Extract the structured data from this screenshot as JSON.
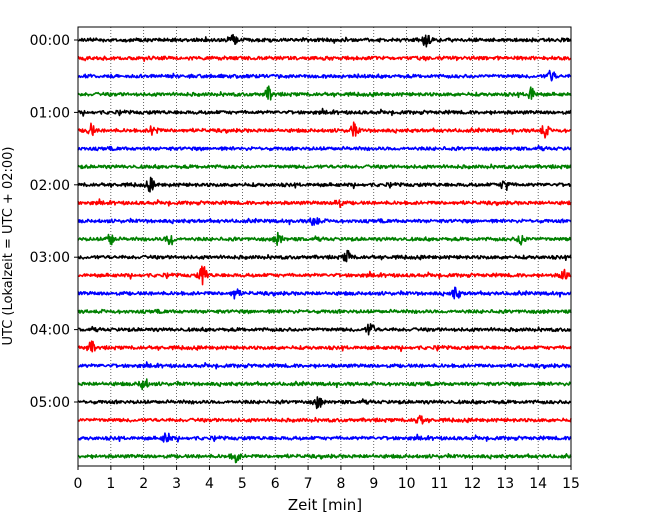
{
  "chart_data": {
    "type": "line",
    "title": "",
    "xlabel": "Zeit  [min]",
    "ylabel": "UTC (Lokalzeit = UTC + 02:00)",
    "xlim": [
      0,
      15
    ],
    "x_ticks": [
      "0",
      "1",
      "2",
      "3",
      "4",
      "5",
      "6",
      "7",
      "8",
      "9",
      "10",
      "11",
      "12",
      "13",
      "14",
      "15"
    ],
    "y_tick_labels": [
      "00:00",
      "01:00",
      "02:00",
      "03:00",
      "04:00",
      "05:00"
    ],
    "row_colors": [
      "#000000",
      "#ff0000",
      "#0000ff",
      "#008000"
    ],
    "rows": [
      {
        "start": "00:00",
        "color": "#000000"
      },
      {
        "start": "00:15",
        "color": "#ff0000"
      },
      {
        "start": "00:30",
        "color": "#0000ff"
      },
      {
        "start": "00:45",
        "color": "#008000"
      },
      {
        "start": "01:00",
        "color": "#000000"
      },
      {
        "start": "01:15",
        "color": "#ff0000"
      },
      {
        "start": "01:30",
        "color": "#0000ff"
      },
      {
        "start": "01:45",
        "color": "#008000"
      },
      {
        "start": "02:00",
        "color": "#000000"
      },
      {
        "start": "02:15",
        "color": "#ff0000"
      },
      {
        "start": "02:30",
        "color": "#0000ff"
      },
      {
        "start": "02:45",
        "color": "#008000"
      },
      {
        "start": "03:00",
        "color": "#000000"
      },
      {
        "start": "03:15",
        "color": "#ff0000"
      },
      {
        "start": "03:30",
        "color": "#0000ff"
      },
      {
        "start": "03:45",
        "color": "#008000"
      },
      {
        "start": "04:00",
        "color": "#000000"
      },
      {
        "start": "04:15",
        "color": "#ff0000"
      },
      {
        "start": "04:30",
        "color": "#0000ff"
      },
      {
        "start": "04:45",
        "color": "#008000"
      },
      {
        "start": "05:00",
        "color": "#000000"
      },
      {
        "start": "05:15",
        "color": "#ff0000"
      },
      {
        "start": "05:30",
        "color": "#0000ff"
      },
      {
        "start": "05:45",
        "color": "#008000"
      }
    ],
    "events": [
      {
        "row": 0,
        "minute": 4.7,
        "amplitude": 1.6
      },
      {
        "row": 0,
        "minute": 10.6,
        "amplitude": 1.5
      },
      {
        "row": 2,
        "minute": 14.4,
        "amplitude": 1.4
      },
      {
        "row": 3,
        "minute": 5.8,
        "amplitude": 1.5
      },
      {
        "row": 3,
        "minute": 13.8,
        "amplitude": 1.6
      },
      {
        "row": 5,
        "minute": 0.4,
        "amplitude": 1.4
      },
      {
        "row": 5,
        "minute": 2.3,
        "amplitude": 1.4
      },
      {
        "row": 5,
        "minute": 8.4,
        "amplitude": 1.6
      },
      {
        "row": 5,
        "minute": 14.2,
        "amplitude": 1.4
      },
      {
        "row": 8,
        "minute": 2.2,
        "amplitude": 1.4
      },
      {
        "row": 8,
        "minute": 13.0,
        "amplitude": 1.4
      },
      {
        "row": 9,
        "minute": 7.9,
        "amplitude": 1.3
      },
      {
        "row": 10,
        "minute": 7.2,
        "amplitude": 1.5
      },
      {
        "row": 11,
        "minute": 1.0,
        "amplitude": 1.4
      },
      {
        "row": 11,
        "minute": 2.8,
        "amplitude": 1.5
      },
      {
        "row": 11,
        "minute": 6.1,
        "amplitude": 1.4
      },
      {
        "row": 11,
        "minute": 13.5,
        "amplitude": 1.4
      },
      {
        "row": 12,
        "minute": 8.2,
        "amplitude": 1.4
      },
      {
        "row": 13,
        "minute": 3.8,
        "amplitude": 2.4
      },
      {
        "row": 13,
        "minute": 14.8,
        "amplitude": 1.4
      },
      {
        "row": 14,
        "minute": 4.8,
        "amplitude": 1.3
      },
      {
        "row": 14,
        "minute": 11.5,
        "amplitude": 1.4
      },
      {
        "row": 16,
        "minute": 8.9,
        "amplitude": 1.6
      },
      {
        "row": 17,
        "minute": 0.4,
        "amplitude": 1.3
      },
      {
        "row": 19,
        "minute": 2.0,
        "amplitude": 1.6
      },
      {
        "row": 20,
        "minute": 7.3,
        "amplitude": 1.4
      },
      {
        "row": 21,
        "minute": 10.4,
        "amplitude": 1.4
      },
      {
        "row": 22,
        "minute": 2.7,
        "amplitude": 1.3
      },
      {
        "row": 23,
        "minute": 4.8,
        "amplitude": 1.4
      }
    ],
    "grid": "vertical-dotted",
    "legend": "none"
  }
}
